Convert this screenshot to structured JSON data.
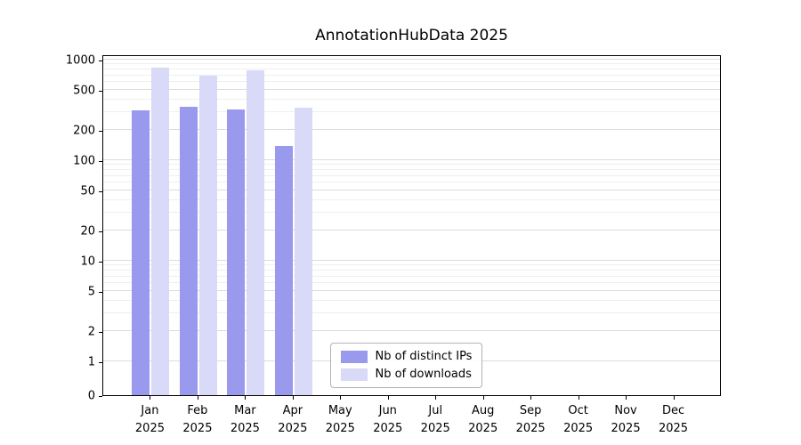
{
  "chart_data": {
    "type": "bar",
    "title": "AnnotationHubData 2025",
    "categories": [
      "Jan",
      "Feb",
      "Mar",
      "Apr",
      "May",
      "Jun",
      "Jul",
      "Aug",
      "Sep",
      "Oct",
      "Nov",
      "Dec"
    ],
    "year_label": "2025",
    "series": [
      {
        "name": "Nb of distinct IPs",
        "slug": "distinct-ips",
        "color": "#9999ee",
        "values": [
          310,
          340,
          320,
          140,
          0,
          0,
          0,
          0,
          0,
          0,
          0,
          0
        ]
      },
      {
        "name": "Nb of downloads",
        "slug": "downloads",
        "color": "#d9d9f8",
        "values": [
          830,
          700,
          780,
          330,
          0,
          0,
          0,
          0,
          0,
          0,
          0,
          0
        ]
      }
    ],
    "yscale": "log-with-zero",
    "yticks": [
      0,
      1,
      2,
      5,
      10,
      20,
      50,
      100,
      200,
      500,
      1000
    ],
    "ylim": [
      0,
      1000
    ],
    "grid": true,
    "legend_position": "bottom-center",
    "colors": {
      "axis": "#000000",
      "grid_major": "#dcdcdc",
      "grid_minor": "#efefef",
      "background": "#ffffff"
    }
  }
}
